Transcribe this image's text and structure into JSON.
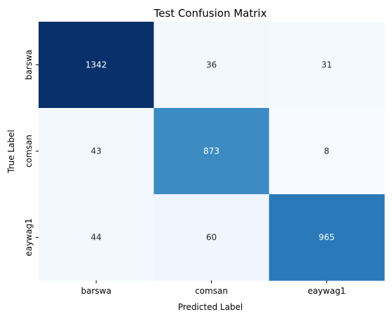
{
  "chart_data": {
    "type": "heatmap",
    "title": "Test Confusion Matrix",
    "xlabel": "Predicted Label",
    "ylabel": "True Label",
    "x_categories": [
      "barswa",
      "comsan",
      "eaywag1"
    ],
    "y_categories": [
      "barswa",
      "comsan",
      "eaywag1"
    ],
    "values": [
      [
        1342,
        36,
        31
      ],
      [
        43,
        873,
        8
      ],
      [
        44,
        60,
        965
      ]
    ],
    "colormap": "Blues",
    "colorbar": false,
    "grid": false
  }
}
